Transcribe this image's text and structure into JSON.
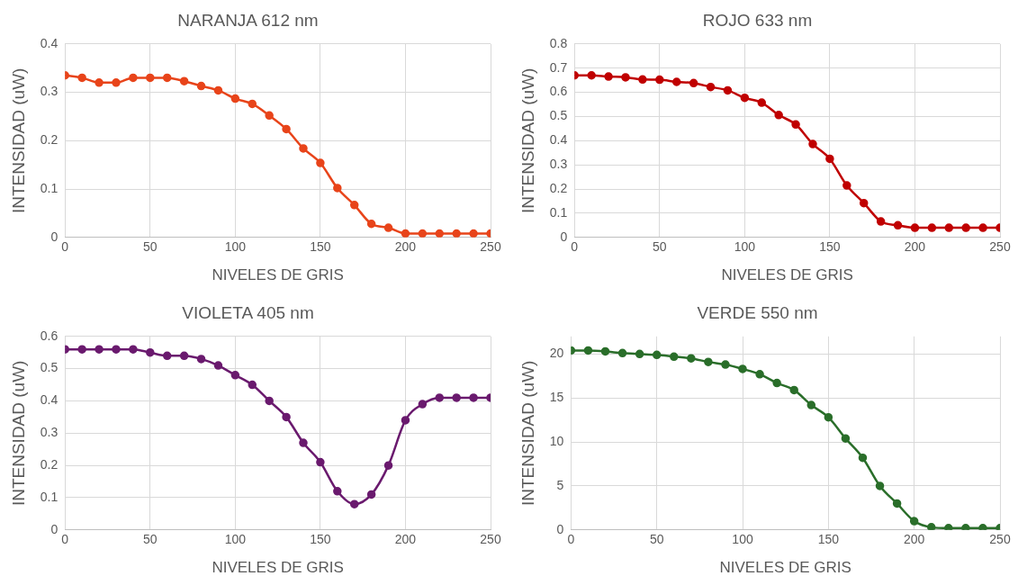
{
  "chart_data": [
    {
      "type": "line",
      "title": "NARANJA 612 nm",
      "xlabel": "NIVELES DE GRIS",
      "ylabel": "INTENSIDAD (uW)",
      "x": [
        0,
        10,
        20,
        30,
        40,
        50,
        60,
        70,
        80,
        90,
        100,
        110,
        120,
        130,
        140,
        150,
        160,
        170,
        180,
        190,
        200,
        210,
        220,
        230,
        240,
        250
      ],
      "series": [
        {
          "color": "#e8441a",
          "values": [
            0.335,
            0.33,
            0.32,
            0.32,
            0.33,
            0.33,
            0.33,
            0.323,
            0.313,
            0.304,
            0.287,
            0.276,
            0.252,
            0.224,
            0.184,
            0.154,
            0.102,
            0.067,
            0.028,
            0.02,
            0.008,
            0.008,
            0.008,
            0.008,
            0.008,
            0.008
          ]
        }
      ],
      "xlim": [
        0,
        250
      ],
      "xticks": [
        0,
        50,
        100,
        150,
        200,
        250
      ],
      "ylim": [
        0,
        0.4
      ],
      "yticks": [
        0,
        0.1,
        0.2,
        0.3,
        0.4
      ],
      "grid": true,
      "legend": false,
      "marker": "circle",
      "line_style": "solid"
    },
    {
      "type": "line",
      "title": "ROJO 633 nm",
      "xlabel": "NIVELES DE GRIS",
      "ylabel": "INTENSIDAD (uW)",
      "x": [
        0,
        10,
        20,
        30,
        40,
        50,
        60,
        70,
        80,
        90,
        100,
        110,
        120,
        130,
        140,
        150,
        160,
        170,
        180,
        190,
        200,
        210,
        220,
        230,
        240,
        250
      ],
      "series": [
        {
          "color": "#c00000",
          "values": [
            0.67,
            0.67,
            0.665,
            0.662,
            0.653,
            0.652,
            0.643,
            0.638,
            0.622,
            0.608,
            0.577,
            0.557,
            0.506,
            0.467,
            0.386,
            0.325,
            0.215,
            0.142,
            0.066,
            0.05,
            0.04,
            0.04,
            0.04,
            0.04,
            0.04,
            0.04
          ]
        }
      ],
      "xlim": [
        0,
        250
      ],
      "xticks": [
        0,
        50,
        100,
        150,
        200,
        250
      ],
      "ylim": [
        0,
        0.8
      ],
      "yticks": [
        0,
        0.1,
        0.2,
        0.3,
        0.4,
        0.5,
        0.6,
        0.7,
        0.8
      ],
      "grid": true,
      "legend": false,
      "marker": "circle",
      "line_style": "solid"
    },
    {
      "type": "line",
      "title": "VIOLETA 405 nm",
      "xlabel": "NIVELES DE GRIS",
      "ylabel": "INTENSIDAD (uW)",
      "x": [
        0,
        10,
        20,
        30,
        40,
        50,
        60,
        70,
        80,
        90,
        100,
        110,
        120,
        130,
        140,
        150,
        160,
        170,
        180,
        190,
        200,
        210,
        220,
        230,
        240,
        250
      ],
      "series": [
        {
          "color": "#6a1a6e",
          "values": [
            0.56,
            0.56,
            0.56,
            0.56,
            0.56,
            0.55,
            0.54,
            0.54,
            0.53,
            0.51,
            0.48,
            0.45,
            0.4,
            0.35,
            0.27,
            0.21,
            0.12,
            0.08,
            0.11,
            0.2,
            0.34,
            0.39,
            0.41,
            0.41,
            0.41,
            0.41
          ]
        }
      ],
      "xlim": [
        0,
        250
      ],
      "xticks": [
        0,
        50,
        100,
        150,
        200,
        250
      ],
      "ylim": [
        0,
        0.6
      ],
      "yticks": [
        0,
        0.1,
        0.2,
        0.3,
        0.4,
        0.5,
        0.6
      ],
      "grid": true,
      "legend": false,
      "marker": "circle",
      "line_style": "solid"
    },
    {
      "type": "line",
      "title": "VERDE 550 nm",
      "xlabel": "NIVELES DE GRIS",
      "ylabel": "INTENSIDAD (uW)",
      "x": [
        0,
        10,
        20,
        30,
        40,
        50,
        60,
        70,
        80,
        90,
        100,
        110,
        120,
        130,
        140,
        150,
        160,
        170,
        180,
        190,
        200,
        210,
        220,
        230,
        240,
        250
      ],
      "series": [
        {
          "color": "#2a6e2a",
          "values": [
            20.4,
            20.4,
            20.3,
            20.1,
            20.0,
            19.9,
            19.7,
            19.5,
            19.1,
            18.8,
            18.3,
            17.7,
            16.7,
            15.9,
            14.2,
            12.8,
            10.4,
            8.2,
            5.0,
            3.0,
            1.0,
            0.3,
            0.2,
            0.2,
            0.2,
            0.2
          ]
        }
      ],
      "xlim": [
        0,
        250
      ],
      "xticks": [
        0,
        50,
        100,
        150,
        200,
        250
      ],
      "ylim": [
        0,
        22
      ],
      "yticks": [
        0,
        5,
        10,
        15,
        20
      ],
      "grid": true,
      "legend": false,
      "marker": "circle",
      "line_style": "solid"
    }
  ]
}
